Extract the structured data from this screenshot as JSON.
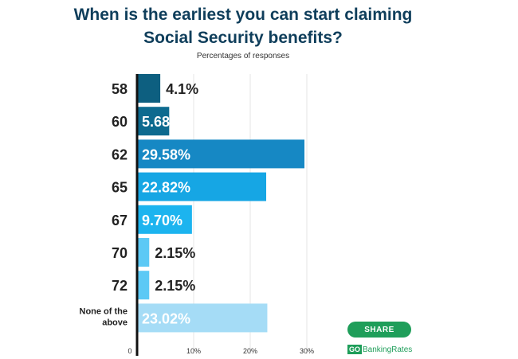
{
  "chart_data": {
    "type": "bar",
    "orientation": "horizontal",
    "title_lines": [
      "When is the earliest you can start claiming",
      "Social Security benefits?"
    ],
    "subtitle": "Percentages of responses",
    "categories": [
      [
        "58"
      ],
      [
        "60"
      ],
      [
        "62"
      ],
      [
        "65"
      ],
      [
        "67"
      ],
      [
        "70"
      ],
      [
        "72"
      ],
      [
        "None of the",
        "above"
      ]
    ],
    "values": [
      4.1,
      5.68,
      29.58,
      22.82,
      9.7,
      2.15,
      2.15,
      23.02
    ],
    "value_labels": [
      "4.1%",
      "5.68%",
      "29.58%",
      "22.82%",
      "9.70%",
      "2.15%",
      "2.15%",
      "23.02%"
    ],
    "colors": [
      "#0d5f80",
      "#0d6a8f",
      "#1688c4",
      "#16a6e4",
      "#1cb4ef",
      "#5cc9f5",
      "#5cc9f5",
      "#a5dcf6"
    ],
    "xlim": [
      0,
      30
    ],
    "x_ticks": [
      0,
      10,
      20,
      30
    ],
    "x_tick_labels": [
      "0",
      "10%",
      "20%",
      "30%"
    ],
    "grid": true
  },
  "share": {
    "label": "SHARE"
  },
  "logo": {
    "go": "GO",
    "text": "BankingRates"
  }
}
